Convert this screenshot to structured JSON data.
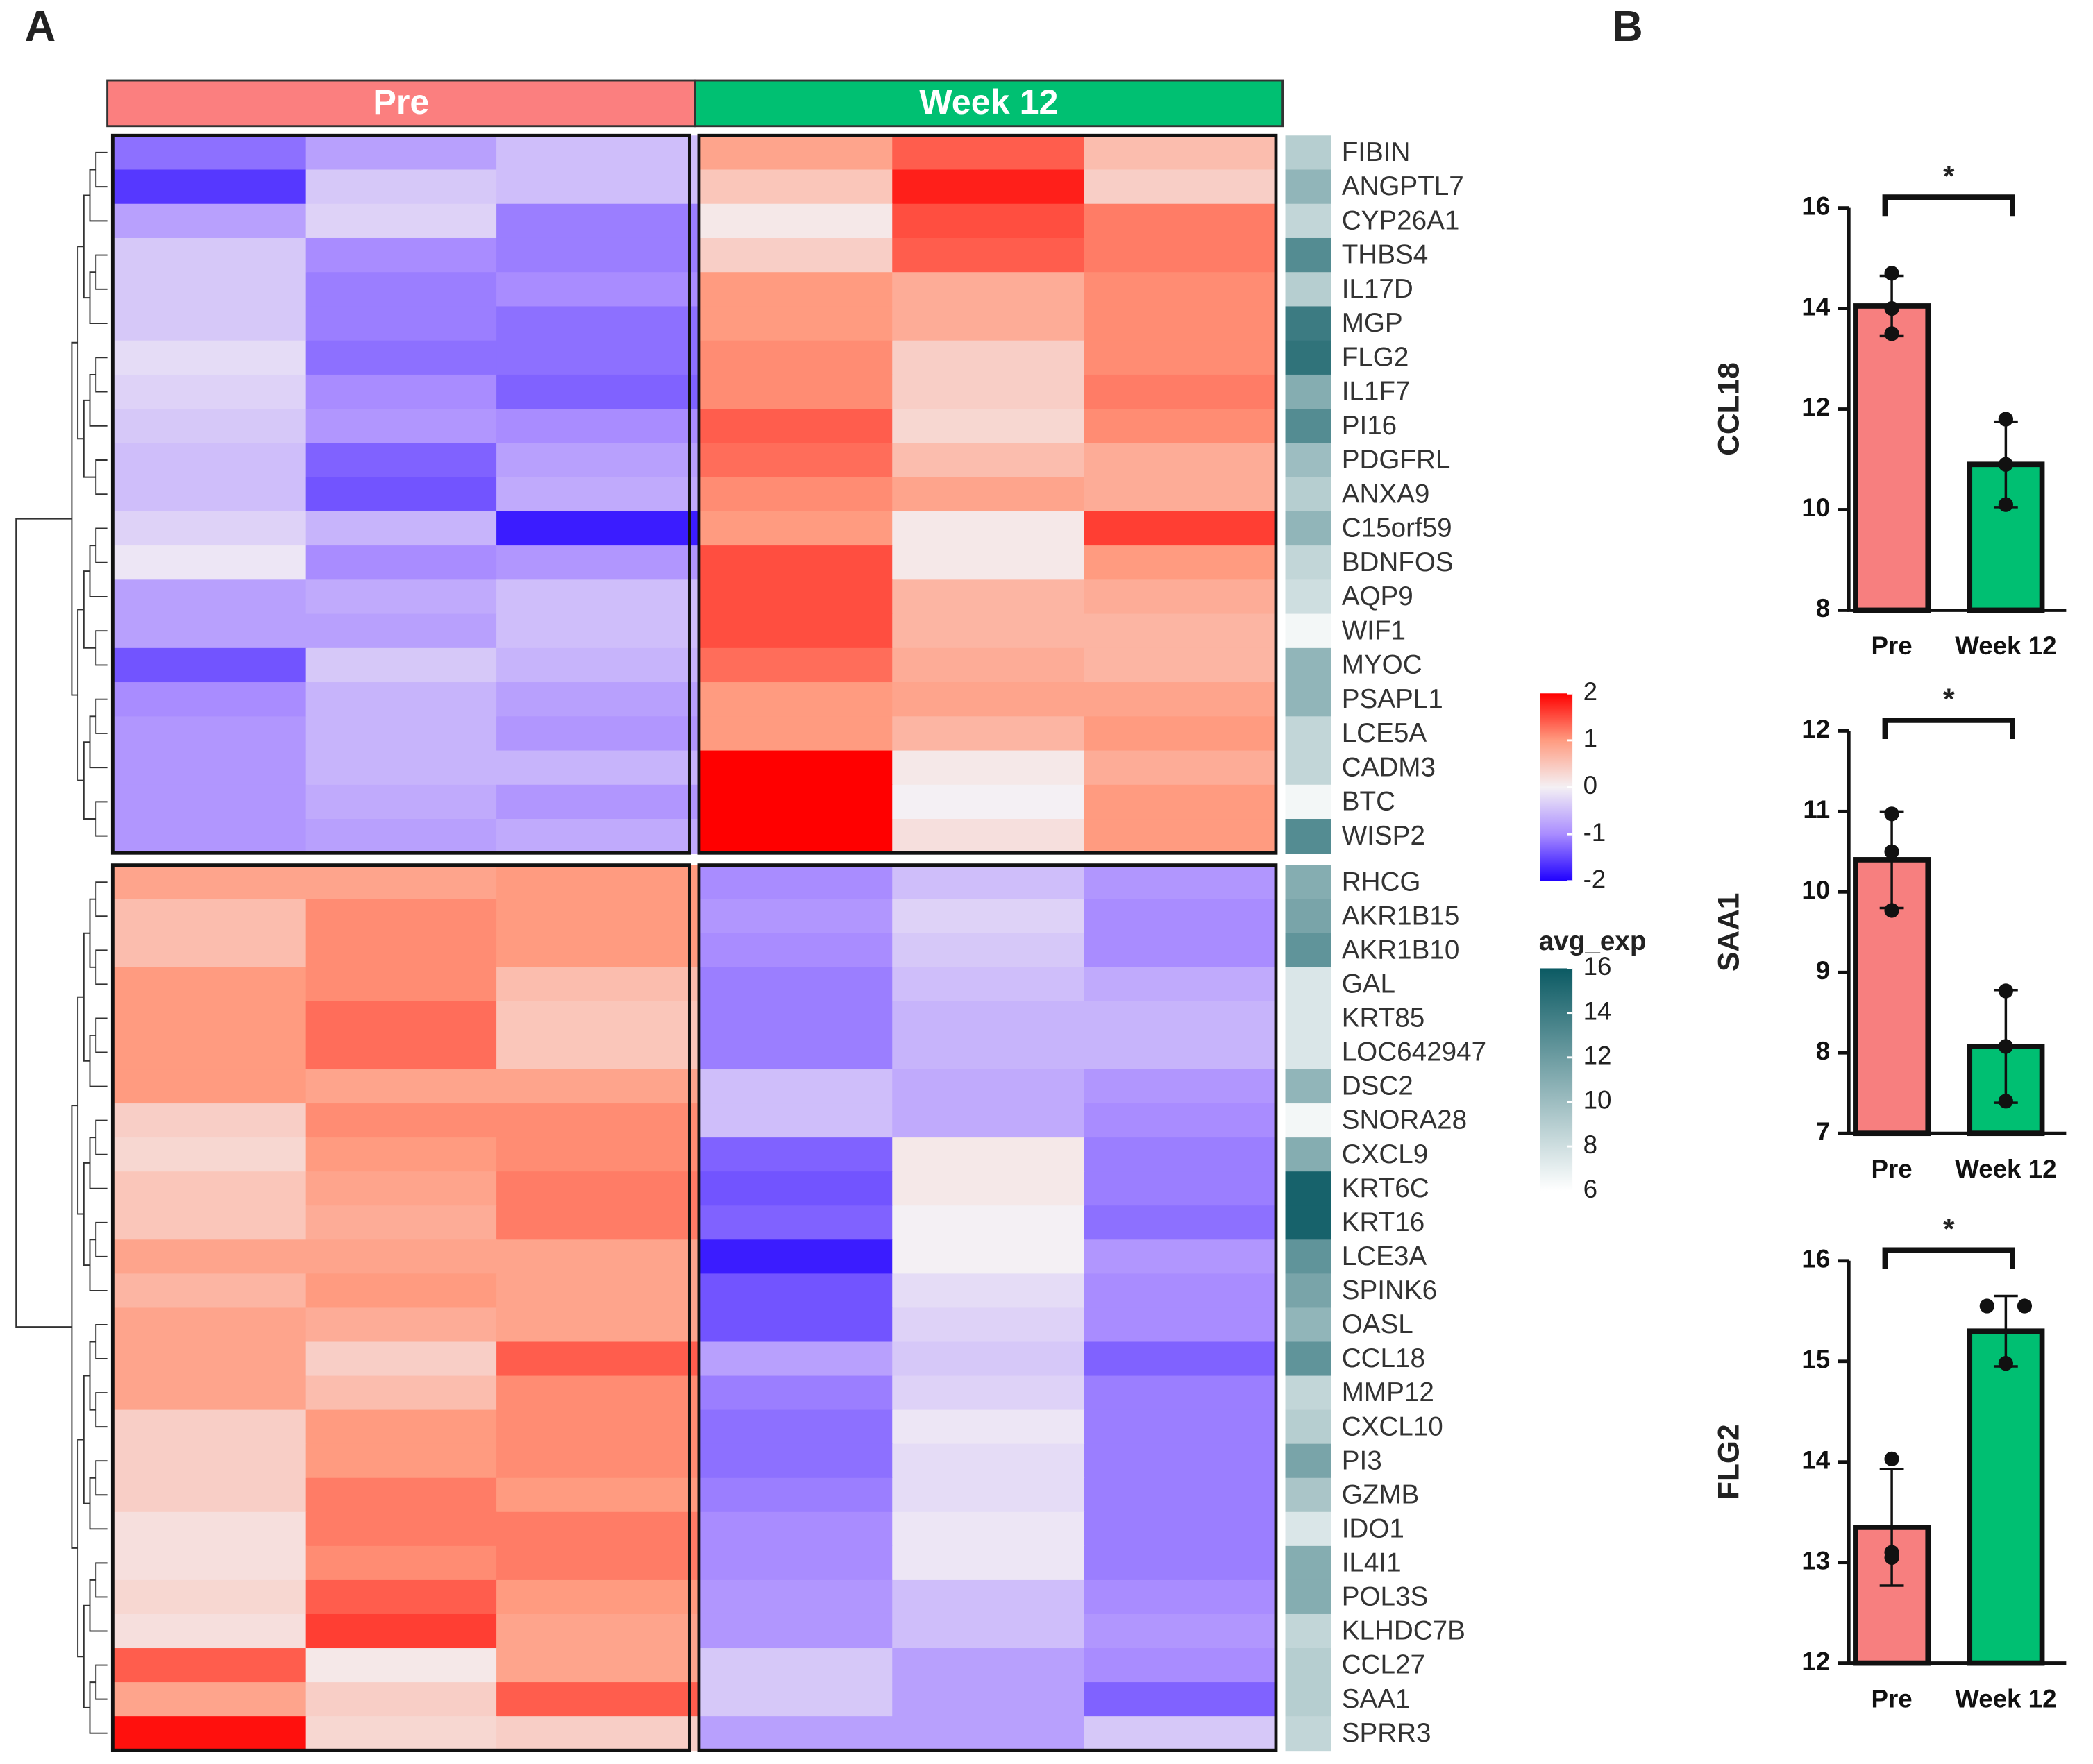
{
  "panel_labels": [
    "A",
    "B"
  ],
  "chart_data": [
    {
      "type": "heatmap",
      "groups": [
        {
          "name": "Pre",
          "color": "#fb7f7f"
        },
        {
          "name": "Week 12",
          "color": "#00c072"
        }
      ],
      "rows": [
        [
          "FIBIN",
          "ANGPTL7",
          "CYP26A1",
          "THBS4",
          "IL17D",
          "MGP",
          "FLG2",
          "IL1F7",
          "PI16",
          "PDGFRL",
          "ANXA9",
          "C15orf59",
          "BDNFOS",
          "AQP9",
          "WIF1",
          "MYOC",
          "PSAPL1",
          "LCE5A",
          "CADM3",
          "BTC",
          "WISP2"
        ],
        [
          "RHCG",
          "AKR1B15",
          "AKR1B10",
          "GAL",
          "KRT85",
          "LOC642947",
          "DSC2",
          "SNORA28",
          "CXCL9",
          "KRT6C",
          "KRT16",
          "LCE3A",
          "SPINK6",
          "OASL",
          "CCL18",
          "MMP12",
          "CXCL10",
          "PI3",
          "GZMB",
          "IDO1",
          "IL4I1",
          "POL3S",
          "KLHDC7B",
          "CCL27",
          "SAA1",
          "SPRR3"
        ]
      ],
      "values": [
        [
          [
            -1.2,
            -0.8,
            -0.5,
            0.9,
            1.4,
            0.6
          ],
          [
            -1.6,
            -0.4,
            -0.5,
            0.5,
            1.8,
            0.4
          ],
          [
            -0.8,
            -0.3,
            -1.1,
            0.1,
            1.5,
            1.2
          ],
          [
            -0.4,
            -1.0,
            -1.1,
            0.4,
            1.4,
            1.2
          ],
          [
            -0.4,
            -1.1,
            -1.0,
            1.0,
            0.8,
            1.1
          ],
          [
            -0.4,
            -1.1,
            -1.2,
            1.0,
            0.8,
            1.1
          ],
          [
            -0.2,
            -1.2,
            -1.2,
            1.1,
            0.4,
            1.1
          ],
          [
            -0.3,
            -1.0,
            -1.3,
            1.1,
            0.4,
            1.2
          ],
          [
            -0.4,
            -0.9,
            -1.0,
            1.4,
            0.3,
            1.1
          ],
          [
            -0.5,
            -1.3,
            -0.8,
            1.3,
            0.6,
            0.8
          ],
          [
            -0.5,
            -1.4,
            -0.7,
            1.1,
            0.9,
            0.8
          ],
          [
            -0.3,
            -0.6,
            -1.8,
            1.0,
            0.1,
            1.6
          ],
          [
            -0.1,
            -1.0,
            -0.9,
            1.5,
            0.1,
            1.0
          ],
          [
            -0.8,
            -0.7,
            -0.5,
            1.5,
            0.7,
            0.8
          ],
          [
            -0.8,
            -0.8,
            -0.5,
            1.5,
            0.7,
            0.7
          ],
          [
            -1.4,
            -0.4,
            -0.6,
            1.3,
            0.8,
            0.7
          ],
          [
            -1.0,
            -0.6,
            -0.8,
            1.0,
            0.9,
            0.9
          ],
          [
            -0.9,
            -0.6,
            -0.9,
            1.0,
            0.7,
            1.0
          ],
          [
            -0.9,
            -0.6,
            -0.6,
            2.0,
            0.1,
            0.8
          ],
          [
            -0.9,
            -0.7,
            -0.9,
            2.0,
            0.0,
            1.0
          ],
          [
            -0.9,
            -0.8,
            -0.7,
            2.0,
            0.2,
            1.0
          ]
        ],
        [
          [
            0.9,
            0.9,
            1.0,
            -1.0,
            -0.5,
            -0.9
          ],
          [
            0.6,
            1.1,
            1.0,
            -0.9,
            -0.3,
            -1.0
          ],
          [
            0.6,
            1.1,
            1.0,
            -1.0,
            -0.4,
            -1.0
          ],
          [
            1.0,
            1.1,
            0.6,
            -1.1,
            -0.5,
            -0.7
          ],
          [
            1.0,
            1.3,
            0.5,
            -1.1,
            -0.6,
            -0.6
          ],
          [
            1.0,
            1.3,
            0.5,
            -1.1,
            -0.6,
            -0.6
          ],
          [
            1.0,
            0.9,
            0.9,
            -0.5,
            -0.7,
            -0.9
          ],
          [
            0.4,
            1.1,
            1.1,
            -0.5,
            -0.7,
            -1.0
          ],
          [
            0.3,
            1.0,
            1.1,
            -1.3,
            0.1,
            -1.1
          ],
          [
            0.5,
            0.9,
            1.2,
            -1.4,
            0.1,
            -1.1
          ],
          [
            0.5,
            0.8,
            1.2,
            -1.3,
            0.0,
            -1.2
          ],
          [
            0.9,
            0.9,
            0.9,
            -1.8,
            0.0,
            -0.9
          ],
          [
            0.7,
            1.0,
            0.9,
            -1.4,
            -0.2,
            -1.0
          ],
          [
            0.9,
            0.8,
            0.9,
            -1.4,
            -0.3,
            -1.0
          ],
          [
            0.9,
            0.4,
            1.4,
            -0.8,
            -0.4,
            -1.3
          ],
          [
            0.9,
            0.6,
            1.1,
            -1.1,
            -0.3,
            -1.1
          ],
          [
            0.4,
            1.0,
            1.1,
            -1.2,
            -0.1,
            -1.1
          ],
          [
            0.4,
            1.0,
            1.1,
            -1.2,
            -0.2,
            -1.1
          ],
          [
            0.4,
            1.2,
            1.0,
            -1.1,
            -0.2,
            -1.1
          ],
          [
            0.2,
            1.2,
            1.2,
            -1.0,
            -0.1,
            -1.1
          ],
          [
            0.2,
            1.1,
            1.2,
            -1.0,
            -0.1,
            -1.1
          ],
          [
            0.3,
            1.4,
            1.0,
            -0.9,
            -0.5,
            -1.0
          ],
          [
            0.2,
            1.6,
            0.9,
            -0.9,
            -0.5,
            -0.9
          ],
          [
            1.4,
            0.1,
            0.9,
            -0.4,
            -0.8,
            -1.0
          ],
          [
            0.9,
            0.4,
            1.4,
            -0.4,
            -0.8,
            -1.3
          ],
          [
            1.9,
            0.3,
            0.4,
            -0.8,
            -0.8,
            -0.4
          ]
        ]
      ],
      "zlim": [
        -2,
        2
      ],
      "zticks": [
        2,
        1,
        0,
        -1,
        -2
      ],
      "colorscale": [
        "#1f00ff",
        "#a98cff",
        "#f4f0f4",
        "#ff9b80",
        "#ff0000"
      ],
      "avg_exp": {
        "name": "avg_exp",
        "values": [
          [
            9,
            10.5,
            8.5,
            13,
            9,
            14,
            14.5,
            11,
            13,
            10,
            9,
            10.5,
            8.5,
            8,
            6.5,
            10.5,
            10.5,
            8.5,
            8.5,
            6.5,
            13
          ],
          [
            11,
            11.5,
            12.5,
            7.5,
            7.5,
            7.5,
            10.5,
            6.5,
            11,
            15.5,
            15.5,
            12.5,
            11.5,
            10.5,
            12.5,
            8.5,
            9,
            11.5,
            9.5,
            7.5,
            11,
            11,
            8.5,
            9,
            9,
            8.5
          ]
        ],
        "lim": [
          6,
          16
        ],
        "ticks": [
          16,
          14,
          12,
          10,
          8,
          6
        ],
        "colorscale": [
          "#ffffff",
          "#0b5a63"
        ]
      }
    },
    {
      "type": "bar",
      "ylabel": "CCL18",
      "categories": [
        "Pre",
        "Week 12"
      ],
      "values": [
        14.05,
        10.9
      ],
      "errors": [
        0.6,
        0.85
      ],
      "points": [
        [
          14.7,
          14.0,
          13.5
        ],
        [
          11.8,
          10.9,
          10.1
        ]
      ],
      "colors": [
        "#f77f7f",
        "#00bf72"
      ],
      "annotation": "*",
      "ylim": [
        8,
        16
      ],
      "yticks": [
        8,
        10,
        12,
        14,
        16
      ]
    },
    {
      "type": "bar",
      "ylabel": "SAA1",
      "categories": [
        "Pre",
        "Week 12"
      ],
      "values": [
        10.4,
        8.08
      ],
      "errors": [
        0.6,
        0.7
      ],
      "points": [
        [
          10.97,
          10.5,
          9.77
        ],
        [
          8.77,
          8.08,
          7.4
        ]
      ],
      "colors": [
        "#f77f7f",
        "#00bf72"
      ],
      "annotation": "*",
      "ylim": [
        7,
        12
      ],
      "yticks": [
        7,
        8,
        9,
        10,
        11,
        12
      ]
    },
    {
      "type": "bar",
      "ylabel": "FLG2",
      "categories": [
        "Pre",
        "Week 12"
      ],
      "values": [
        13.35,
        15.3
      ],
      "errors": [
        0.58,
        0.35
      ],
      "points": [
        [
          14.03,
          13.1,
          13.05
        ],
        [
          15.55,
          15.55,
          14.98
        ]
      ],
      "colors": [
        "#f77f7f",
        "#00bf72"
      ],
      "annotation": "*",
      "ylim": [
        12,
        16
      ],
      "yticks": [
        12,
        13,
        14,
        15,
        16
      ]
    }
  ]
}
